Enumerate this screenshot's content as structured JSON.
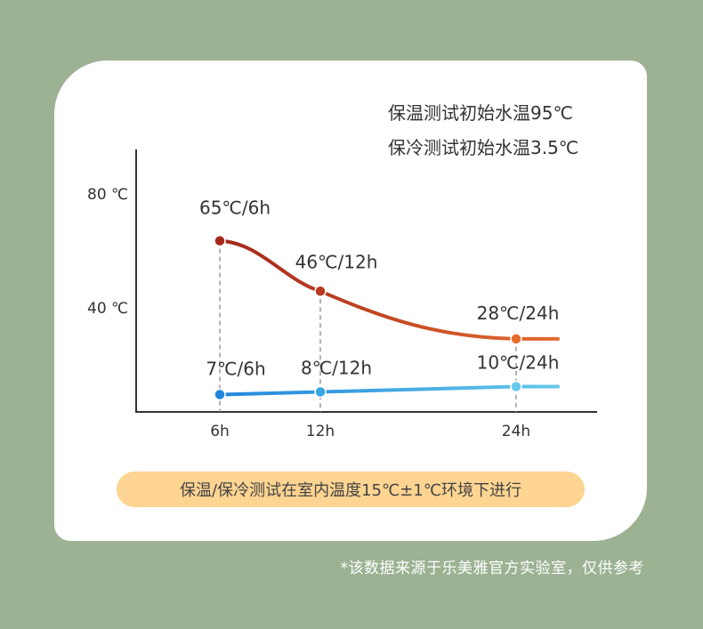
{
  "chart_data": {
    "type": "line",
    "x": [
      "6h",
      "12h",
      "24h"
    ],
    "series": [
      {
        "name": "保温测试初始水温95℃",
        "values": [
          65,
          46,
          28
        ],
        "labels": [
          "65℃/6h",
          "46℃/12h",
          "28℃/24h"
        ],
        "color_start": "#a3271b",
        "color_end": "#e56b2d"
      },
      {
        "name": "保冷测试初始水温3.5℃",
        "values": [
          7,
          8,
          10
        ],
        "labels": [
          "7℃/6h",
          "8℃/12h",
          "10℃/24h"
        ],
        "color_start": "#1f86dc",
        "color_end": "#67c8ea"
      }
    ],
    "y_tick_labels": [
      "80 ℃",
      "40 ℃"
    ],
    "y_ticks": [
      80,
      40
    ],
    "ylim": [
      -10,
      105
    ],
    "grid": false,
    "legend_position": "top-right"
  },
  "condition_note": "保温/保冷测试在室内温度15℃±1℃环境下进行",
  "footnote": "*该数据来源于乐美雅官方实验室，仅供参考",
  "colors": {
    "background": "#9cb293",
    "card": "#ffffff",
    "note_pill": "#fdd491",
    "axis": "#333333",
    "text": "#333333"
  }
}
